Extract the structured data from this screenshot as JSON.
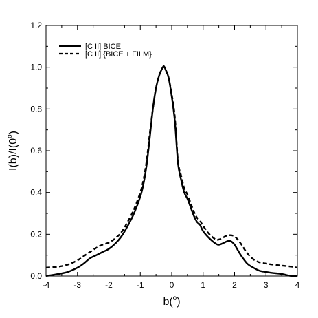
{
  "chart_data": {
    "type": "line",
    "title": "",
    "xlabel_main": "b(",
    "xlabel_sup": "o",
    "xlabel_tail": ")",
    "ylabel_main": "I(b)/I(0",
    "ylabel_sup": "o",
    "ylabel_tail": ")",
    "xlim": [
      -4,
      4
    ],
    "ylim": [
      0,
      1.2
    ],
    "xticks": [
      -4,
      -3,
      -2,
      -1,
      0,
      1,
      2,
      3,
      4
    ],
    "xtick_labels": [
      "-4",
      "-3",
      "-2",
      "-1",
      "0",
      "1",
      "2",
      "3",
      "4"
    ],
    "yticks": [
      0,
      0.2,
      0.4,
      0.6,
      0.8,
      1.0,
      1.2
    ],
    "ytick_labels": [
      "0.0",
      "0.2",
      "0.4",
      "0.6",
      "0.8",
      "1.0",
      "1.2"
    ],
    "grid": false,
    "legend_position": "top-left",
    "series": [
      {
        "name": "[C II] BICE",
        "style": "solid",
        "color": "#000000",
        "x": [
          -4.0,
          -3.6,
          -3.3,
          -3.0,
          -2.8,
          -2.6,
          -2.4,
          -2.2,
          -2.0,
          -1.8,
          -1.6,
          -1.4,
          -1.2,
          -1.0,
          -0.9,
          -0.8,
          -0.7,
          -0.6,
          -0.5,
          -0.4,
          -0.3,
          -0.25,
          -0.2,
          -0.1,
          0.0,
          0.1,
          0.2,
          0.3,
          0.4,
          0.5,
          0.6,
          0.7,
          0.8,
          0.9,
          1.0,
          1.2,
          1.4,
          1.5,
          1.6,
          1.7,
          1.8,
          1.9,
          2.0,
          2.1,
          2.2,
          2.4,
          2.6,
          2.8,
          3.0,
          3.2,
          3.5,
          3.8,
          4.0
        ],
        "y": [
          0.0,
          0.01,
          0.02,
          0.04,
          0.06,
          0.085,
          0.1,
          0.115,
          0.13,
          0.155,
          0.19,
          0.24,
          0.3,
          0.38,
          0.44,
          0.53,
          0.66,
          0.8,
          0.9,
          0.96,
          0.995,
          1.005,
          0.99,
          0.95,
          0.86,
          0.74,
          0.54,
          0.46,
          0.4,
          0.37,
          0.33,
          0.29,
          0.26,
          0.245,
          0.215,
          0.18,
          0.155,
          0.15,
          0.155,
          0.162,
          0.168,
          0.165,
          0.15,
          0.125,
          0.1,
          0.06,
          0.04,
          0.025,
          0.02,
          0.015,
          0.01,
          0.0,
          0.0
        ]
      },
      {
        "name": "[C II] {BICE + FILM}",
        "style": "dashed",
        "color": "#000000",
        "x": [
          -4.0,
          -3.6,
          -3.3,
          -3.0,
          -2.8,
          -2.6,
          -2.4,
          -2.2,
          -2.0,
          -1.8,
          -1.6,
          -1.4,
          -1.2,
          -1.0,
          -0.9,
          -0.8,
          -0.7,
          -0.6,
          -0.5,
          -0.4,
          -0.3,
          -0.25,
          -0.2,
          -0.1,
          0.0,
          0.1,
          0.2,
          0.3,
          0.4,
          0.5,
          0.6,
          0.7,
          0.8,
          0.9,
          1.0,
          1.2,
          1.4,
          1.5,
          1.6,
          1.7,
          1.8,
          1.9,
          2.0,
          2.1,
          2.2,
          2.4,
          2.6,
          2.8,
          3.0,
          3.2,
          3.5,
          3.8,
          4.0
        ],
        "y": [
          0.04,
          0.045,
          0.055,
          0.075,
          0.095,
          0.115,
          0.135,
          0.15,
          0.16,
          0.18,
          0.21,
          0.26,
          0.32,
          0.4,
          0.46,
          0.55,
          0.68,
          0.8,
          0.9,
          0.96,
          0.995,
          1.0,
          0.99,
          0.95,
          0.87,
          0.76,
          0.55,
          0.48,
          0.42,
          0.39,
          0.35,
          0.31,
          0.28,
          0.265,
          0.24,
          0.2,
          0.175,
          0.175,
          0.18,
          0.19,
          0.195,
          0.195,
          0.19,
          0.175,
          0.155,
          0.11,
          0.08,
          0.065,
          0.06,
          0.055,
          0.05,
          0.045,
          0.04
        ]
      }
    ]
  }
}
